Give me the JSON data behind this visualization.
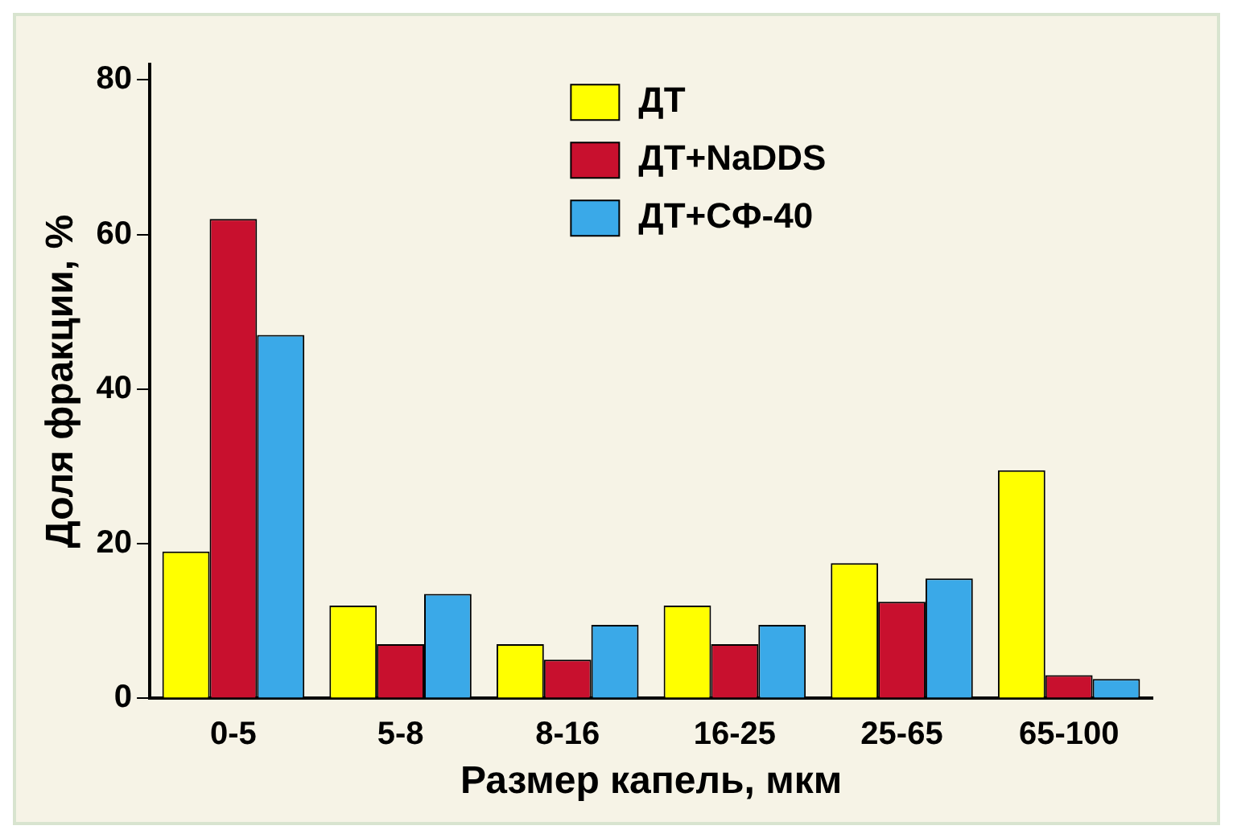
{
  "chart_data": {
    "type": "bar",
    "xlabel": "Размер капель, мкм",
    "ylabel": "Доля фракции, %",
    "categories": [
      "0-5",
      "5-8",
      "8-16",
      "16-25",
      "25-65",
      "65-100"
    ],
    "series": [
      {
        "name": "ДТ",
        "color": "#ffff00",
        "values": [
          19,
          12,
          7,
          12,
          17.5,
          29.5
        ]
      },
      {
        "name": "ДТ+NaDDS",
        "color": "#c8102e",
        "values": [
          62,
          7,
          5,
          7,
          12.5,
          3
        ]
      },
      {
        "name": "ДТ+СФ-40",
        "color": "#3aa9e8",
        "values": [
          47,
          13.5,
          9.5,
          9.5,
          15.5,
          2.5
        ]
      }
    ],
    "ylim": [
      0,
      82
    ],
    "yticks": [
      0,
      20,
      40,
      60,
      80
    ],
    "grid": false,
    "legend": "top"
  }
}
